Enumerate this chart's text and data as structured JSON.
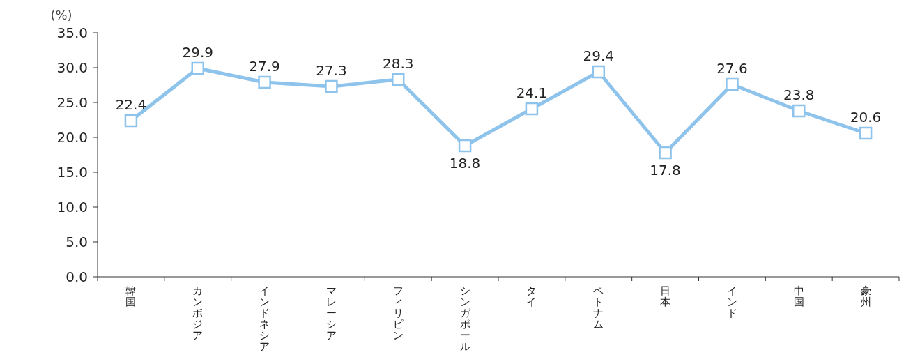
{
  "chart_data": {
    "type": "line",
    "ylabel": "(%)",
    "categories": [
      "韓国",
      "カンボジア",
      "インドネシア",
      "マレーシア",
      "フィリピン",
      "シンガポール",
      "タイ",
      "ベトナム",
      "日本",
      "インド",
      "中国",
      "豪州"
    ],
    "series": [
      {
        "color": "#8ec3eb",
        "values": [
          22.4,
          29.9,
          27.9,
          27.3,
          28.3,
          18.8,
          24.1,
          29.4,
          17.8,
          27.6,
          23.8,
          20.6
        ]
      }
    ],
    "ylim": [
      0,
      35
    ],
    "yticks": [
      {
        "value": 0,
        "label": "0.0"
      },
      {
        "value": 5,
        "label": "5.0"
      },
      {
        "value": 10,
        "label": "10.0"
      },
      {
        "value": 15,
        "label": "15.0"
      },
      {
        "value": 20,
        "label": "20.0"
      },
      {
        "value": 25,
        "label": "25.0"
      },
      {
        "value": 30,
        "label": "30.0"
      },
      {
        "value": 35,
        "label": "35.0"
      }
    ],
    "data_labels": true,
    "marker": "square",
    "line_style": "solid"
  }
}
